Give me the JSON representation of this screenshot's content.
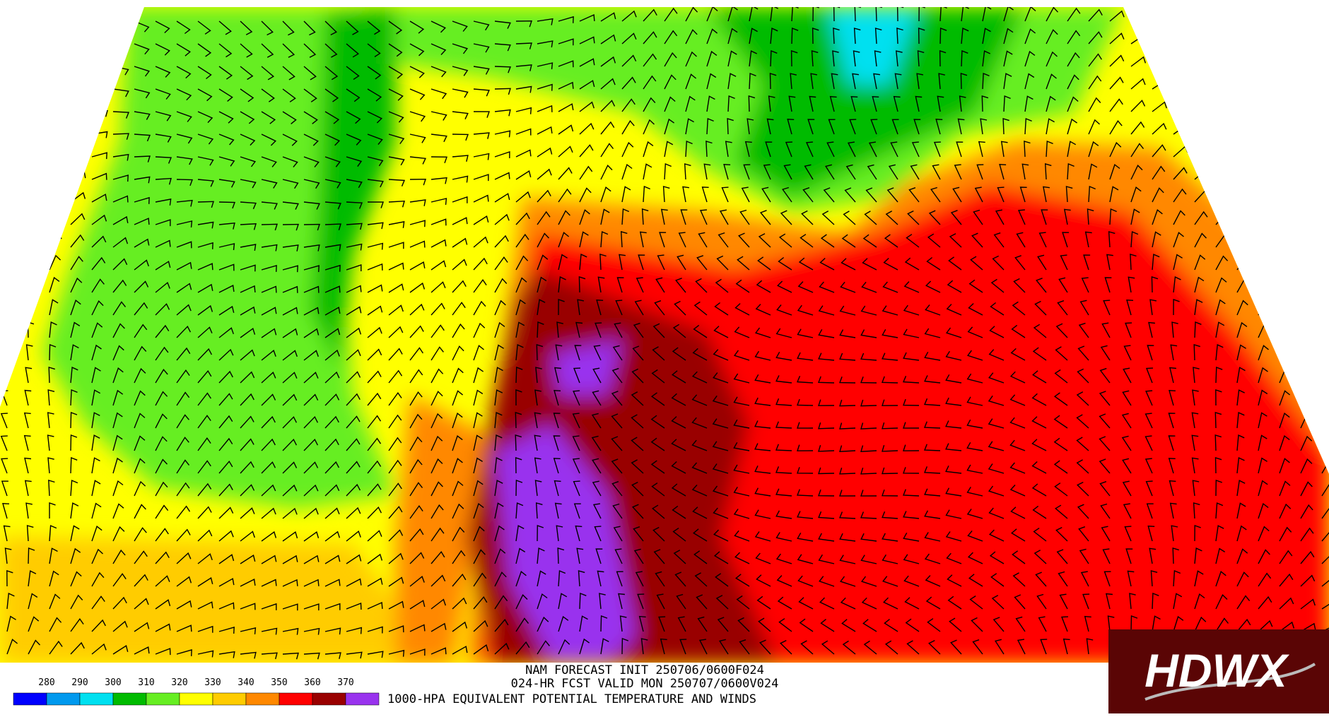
{
  "header": {
    "line1": "NAM FORECAST INIT 250706/0600F024",
    "line2": "024-HR FCST VALID MON 250707/0600V024",
    "line3": "1000-HPA EQUIVALENT POTENTIAL TEMPERATURE AND WINDS"
  },
  "legend": {
    "labels": [
      "280",
      "290",
      "300",
      "310",
      "320",
      "330",
      "340",
      "350",
      "360",
      "370"
    ],
    "colors": [
      "#0000ff",
      "#0099ee",
      "#00e0f0",
      "#00bb00",
      "#66ee22",
      "#ffff00",
      "#ffcc00",
      "#ff8800",
      "#ff0000",
      "#990000",
      "#9933ee"
    ]
  },
  "logo": {
    "text": "HDWX"
  }
}
